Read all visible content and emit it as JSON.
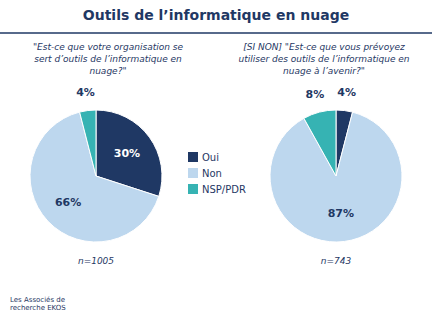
{
  "chart_data": [
    {
      "type": "pie",
      "title": "Outils de l’informatique en nuage",
      "subtitle": [
        "\"Est-ce que votre organisation se",
        "sert d’outils de l’informatique en",
        "nuage?\""
      ],
      "categories": [
        "Oui",
        "Non",
        "NSP/PDR"
      ],
      "values": [
        30,
        66,
        4
      ],
      "value_labels": [
        "30%",
        "66%",
        "4%"
      ],
      "colors": [
        "#1f3864",
        "#bdd7ee",
        "#36b3b3"
      ],
      "data_labels": true,
      "legend": "center",
      "annotations": [
        "n=1005",
        "Les Associés de\nrecherche EKOS"
      ]
    },
    {
      "type": "pie",
      "subtitle": [
        "[SI NON] \"Est-ce que vous prévoyez",
        "utiliser des outils de l’informatique en",
        "nuage à l’avenir?\""
      ],
      "categories": [
        "Oui",
        "Non",
        "NSP/PDR"
      ],
      "values": [
        4,
        87,
        8
      ],
      "value_labels": [
        "4%",
        "87%",
        "8%"
      ],
      "colors": [
        "#1f3864",
        "#bdd7ee",
        "#36b3b3"
      ],
      "data_labels": true,
      "annotations": [
        "n=743"
      ]
    }
  ]
}
